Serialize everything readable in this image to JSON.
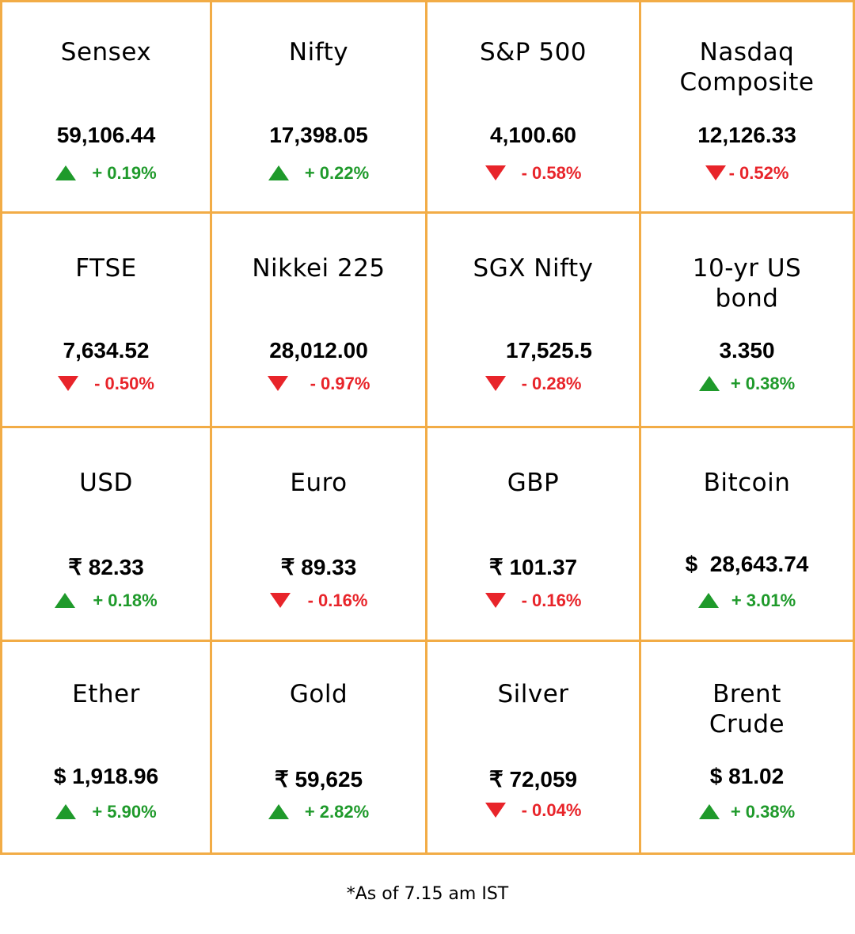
{
  "tiles": [
    {
      "name": "Sensex",
      "value": "59,106.44",
      "change": "+ 0.19%",
      "direction": "up"
    },
    {
      "name": "Nifty",
      "value": "17,398.05",
      "change": "+ 0.22%",
      "direction": "up"
    },
    {
      "name": "S&P 500",
      "value": "4,100.60",
      "change": "- 0.58%",
      "direction": "down"
    },
    {
      "name": "Nasdaq Composite",
      "value": "12,126.33",
      "change": "- 0.52%",
      "direction": "down"
    },
    {
      "name": "FTSE",
      "value": "7,634.52",
      "change": "- 0.50%",
      "direction": "down"
    },
    {
      "name": "Nikkei 225",
      "value": "28,012.00",
      "change": "- 0.97%",
      "direction": "down"
    },
    {
      "name": "SGX Nifty",
      "value": "17,525.5",
      "change": "- 0.28%",
      "direction": "down"
    },
    {
      "name": "10-yr US bond",
      "value": "3.350",
      "change": "+ 0.38%",
      "direction": "up"
    },
    {
      "name": "USD",
      "value": "₹ 82.33",
      "change": "+ 0.18%",
      "direction": "up"
    },
    {
      "name": "Euro",
      "value": "₹ 89.33",
      "change": "- 0.16%",
      "direction": "down"
    },
    {
      "name": "GBP",
      "value": "₹ 101.37",
      "change": "- 0.16%",
      "direction": "down"
    },
    {
      "name": "Bitcoin",
      "value": "$  28,643.74",
      "change": "+ 3.01%",
      "direction": "up"
    },
    {
      "name": "Ether",
      "value": "$ 1,918.96",
      "change": "+ 5.90%",
      "direction": "up"
    },
    {
      "name": "Gold",
      "value": "₹ 59,625",
      "change": "+ 2.82%",
      "direction": "up"
    },
    {
      "name": "Silver",
      "value": "₹ 72,059",
      "change": "- 0.04%",
      "direction": "down"
    },
    {
      "name": "Brent Crude",
      "value": "$ 81.02",
      "change": "+ 0.38%",
      "direction": "up"
    }
  ],
  "footnote": "*As of 7.15 am IST",
  "colors": {
    "border": "#f2ac46",
    "up": "#1f9a2b",
    "down": "#e8242a"
  },
  "icons": {
    "up": "triangle-up-icon",
    "down": "triangle-down-icon"
  }
}
